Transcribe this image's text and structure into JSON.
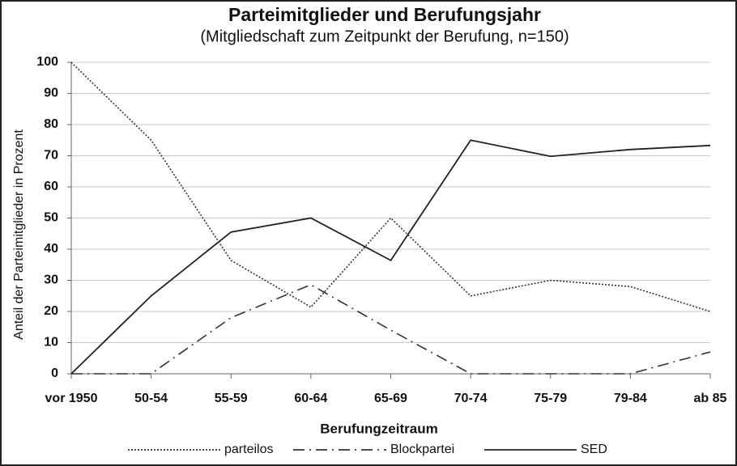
{
  "chart_data": {
    "type": "line",
    "title": "Parteimitglieder und Berufungsjahr",
    "subtitle": "(Mitgliedschaft zum Zeitpunkt der Berufung, n=150)",
    "x_label": "Berufungzeitraum",
    "y_label": "Anteil der Parteimitglieder in Prozent",
    "categories": [
      "vor 1950",
      "50-54",
      "55-59",
      "60-64",
      "65-69",
      "70-74",
      "75-79",
      "79-84",
      "ab 85"
    ],
    "series": [
      {
        "name": "parteilos",
        "color": "#333333",
        "dash": "dotted",
        "values": [
          100,
          75,
          36.4,
          21.4,
          50,
          25,
          30,
          28,
          20
        ]
      },
      {
        "name": "Blockpartei",
        "color": "#333333",
        "dash": "dash-dot",
        "values": [
          0,
          0,
          18,
          28.6,
          14,
          0,
          0,
          0,
          7
        ]
      },
      {
        "name": "SED",
        "color": "#222222",
        "dash": "solid",
        "values": [
          0,
          25,
          45.5,
          50,
          36.4,
          75,
          69.8,
          72,
          73.3
        ]
      }
    ],
    "ylim": [
      0,
      100
    ],
    "yticks": [
      0,
      10,
      20,
      30,
      40,
      50,
      60,
      70,
      80,
      90,
      100
    ],
    "grid": true,
    "legend": "bottom"
  }
}
